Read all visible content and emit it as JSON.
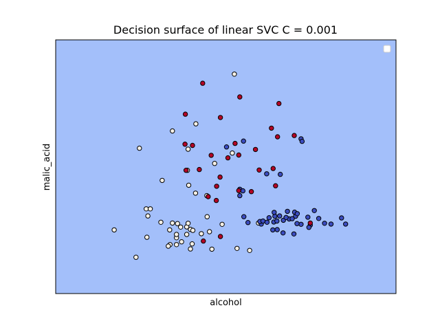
{
  "chart_data": {
    "type": "scatter",
    "title": "Decision surface of linear SVC C = 0.001",
    "xlabel": "alcohol",
    "ylabel": "malic_acid",
    "xlim": [
      0,
      100
    ],
    "ylim": [
      0,
      100
    ],
    "grid": false,
    "legend": "top-right",
    "background_color": "#a3bffa",
    "series": [
      {
        "color": "#f5f0e6",
        "values": [
          [
            52.5,
            86.5
          ],
          [
            41.2,
            66.9
          ],
          [
            24.6,
            57.3
          ],
          [
            34.3,
            64.1
          ],
          [
            38.9,
            56.9
          ],
          [
            46.7,
            51.3
          ],
          [
            51.9,
            55.4
          ],
          [
            31.3,
            44.6
          ],
          [
            38.7,
            48.6
          ],
          [
            39.1,
            42.7
          ],
          [
            41.1,
            39.6
          ],
          [
            44.4,
            38.6
          ],
          [
            26.6,
            33.4
          ],
          [
            27.8,
            33.4
          ],
          [
            27.1,
            30.6
          ],
          [
            30.9,
            28.1
          ],
          [
            17.2,
            25.1
          ],
          [
            26.8,
            22.2
          ],
          [
            33.5,
            25.1
          ],
          [
            34.3,
            27.8
          ],
          [
            35.8,
            27.6
          ],
          [
            38.5,
            26.3
          ],
          [
            39.6,
            25.3
          ],
          [
            40.3,
            24.9
          ],
          [
            36.7,
            26.2
          ],
          [
            38.9,
            27.7
          ],
          [
            38.5,
            23.3
          ],
          [
            35.5,
            22.0
          ],
          [
            35.5,
            23.3
          ],
          [
            37.0,
            20.4
          ],
          [
            33.6,
            19.3
          ],
          [
            35.5,
            19.3
          ],
          [
            33.1,
            18.7
          ],
          [
            44.5,
            30.3
          ],
          [
            45.2,
            24.4
          ],
          [
            42.8,
            23.6
          ],
          [
            48.9,
            27.3
          ],
          [
            40.1,
            19.6
          ],
          [
            45.9,
            17.5
          ],
          [
            39.6,
            17.6
          ],
          [
            53.3,
            17.8
          ],
          [
            57.0,
            17.0
          ],
          [
            59.6,
            27.8
          ],
          [
            23.6,
            14.3
          ]
        ]
      },
      {
        "color": "#3b4cc0",
        "values": [
          [
            50.2,
            57.8
          ],
          [
            55.2,
            60.1
          ],
          [
            72.1,
            61.0
          ],
          [
            72.4,
            60.0
          ],
          [
            54.1,
            41.1
          ],
          [
            62.0,
            47.2
          ],
          [
            66.0,
            47.0
          ],
          [
            55.0,
            40.5
          ],
          [
            60.4,
            27.4
          ],
          [
            60.0,
            28.4
          ],
          [
            60.9,
            28.6
          ],
          [
            64.1,
            28.2
          ],
          [
            65.0,
            28.6
          ],
          [
            66.9,
            28.9
          ],
          [
            68.6,
            29.4
          ],
          [
            70.5,
            30.5
          ],
          [
            69.5,
            29.5
          ],
          [
            67.7,
            30.0
          ],
          [
            70.2,
            32.1
          ],
          [
            62.7,
            29.9
          ],
          [
            64.4,
            30.5
          ],
          [
            65.8,
            30.6
          ],
          [
            64.2,
            32.0
          ],
          [
            68.1,
            32.4
          ],
          [
            72.1,
            27.3
          ],
          [
            70.9,
            27.6
          ],
          [
            74.8,
            27.0
          ],
          [
            79.0,
            27.7
          ],
          [
            80.9,
            27.4
          ],
          [
            84.0,
            29.8
          ],
          [
            76.0,
            32.7
          ],
          [
            71.0,
            31.5
          ],
          [
            77.3,
            29.6
          ],
          [
            74.4,
            26.1
          ],
          [
            66.8,
            23.9
          ],
          [
            63.8,
            25.1
          ],
          [
            70.0,
            23.5
          ],
          [
            74.1,
            30.1
          ],
          [
            85.2,
            27.4
          ],
          [
            55.3,
            30.3
          ],
          [
            56.5,
            28.0
          ],
          [
            62.1,
            28.1
          ],
          [
            54.1,
            38.6
          ],
          [
            65.1,
            25.2
          ]
        ]
      },
      {
        "color": "#b40426",
        "values": [
          [
            43.2,
            82.9
          ],
          [
            54.1,
            77.5
          ],
          [
            65.6,
            74.9
          ],
          [
            38.1,
            70.7
          ],
          [
            48.4,
            69.4
          ],
          [
            63.4,
            65.2
          ],
          [
            70.1,
            62.3
          ],
          [
            65.2,
            61.8
          ],
          [
            38.0,
            58.9
          ],
          [
            40.2,
            58.4
          ],
          [
            52.7,
            59.2
          ],
          [
            58.7,
            56.8
          ],
          [
            45.7,
            54.5
          ],
          [
            50.6,
            53.5
          ],
          [
            53.8,
            54.6
          ],
          [
            42.2,
            48.9
          ],
          [
            38.3,
            48.6
          ],
          [
            59.8,
            48.7
          ],
          [
            63.9,
            49.3
          ],
          [
            48.3,
            45.9
          ],
          [
            47.3,
            42.3
          ],
          [
            64.6,
            42.5
          ],
          [
            53.8,
            40.6
          ],
          [
            57.5,
            40.2
          ],
          [
            44.8,
            38.2
          ],
          [
            47.2,
            36.7
          ],
          [
            74.8,
            27.8
          ],
          [
            43.4,
            20.7
          ],
          [
            48.4,
            22.5
          ]
        ]
      }
    ]
  }
}
